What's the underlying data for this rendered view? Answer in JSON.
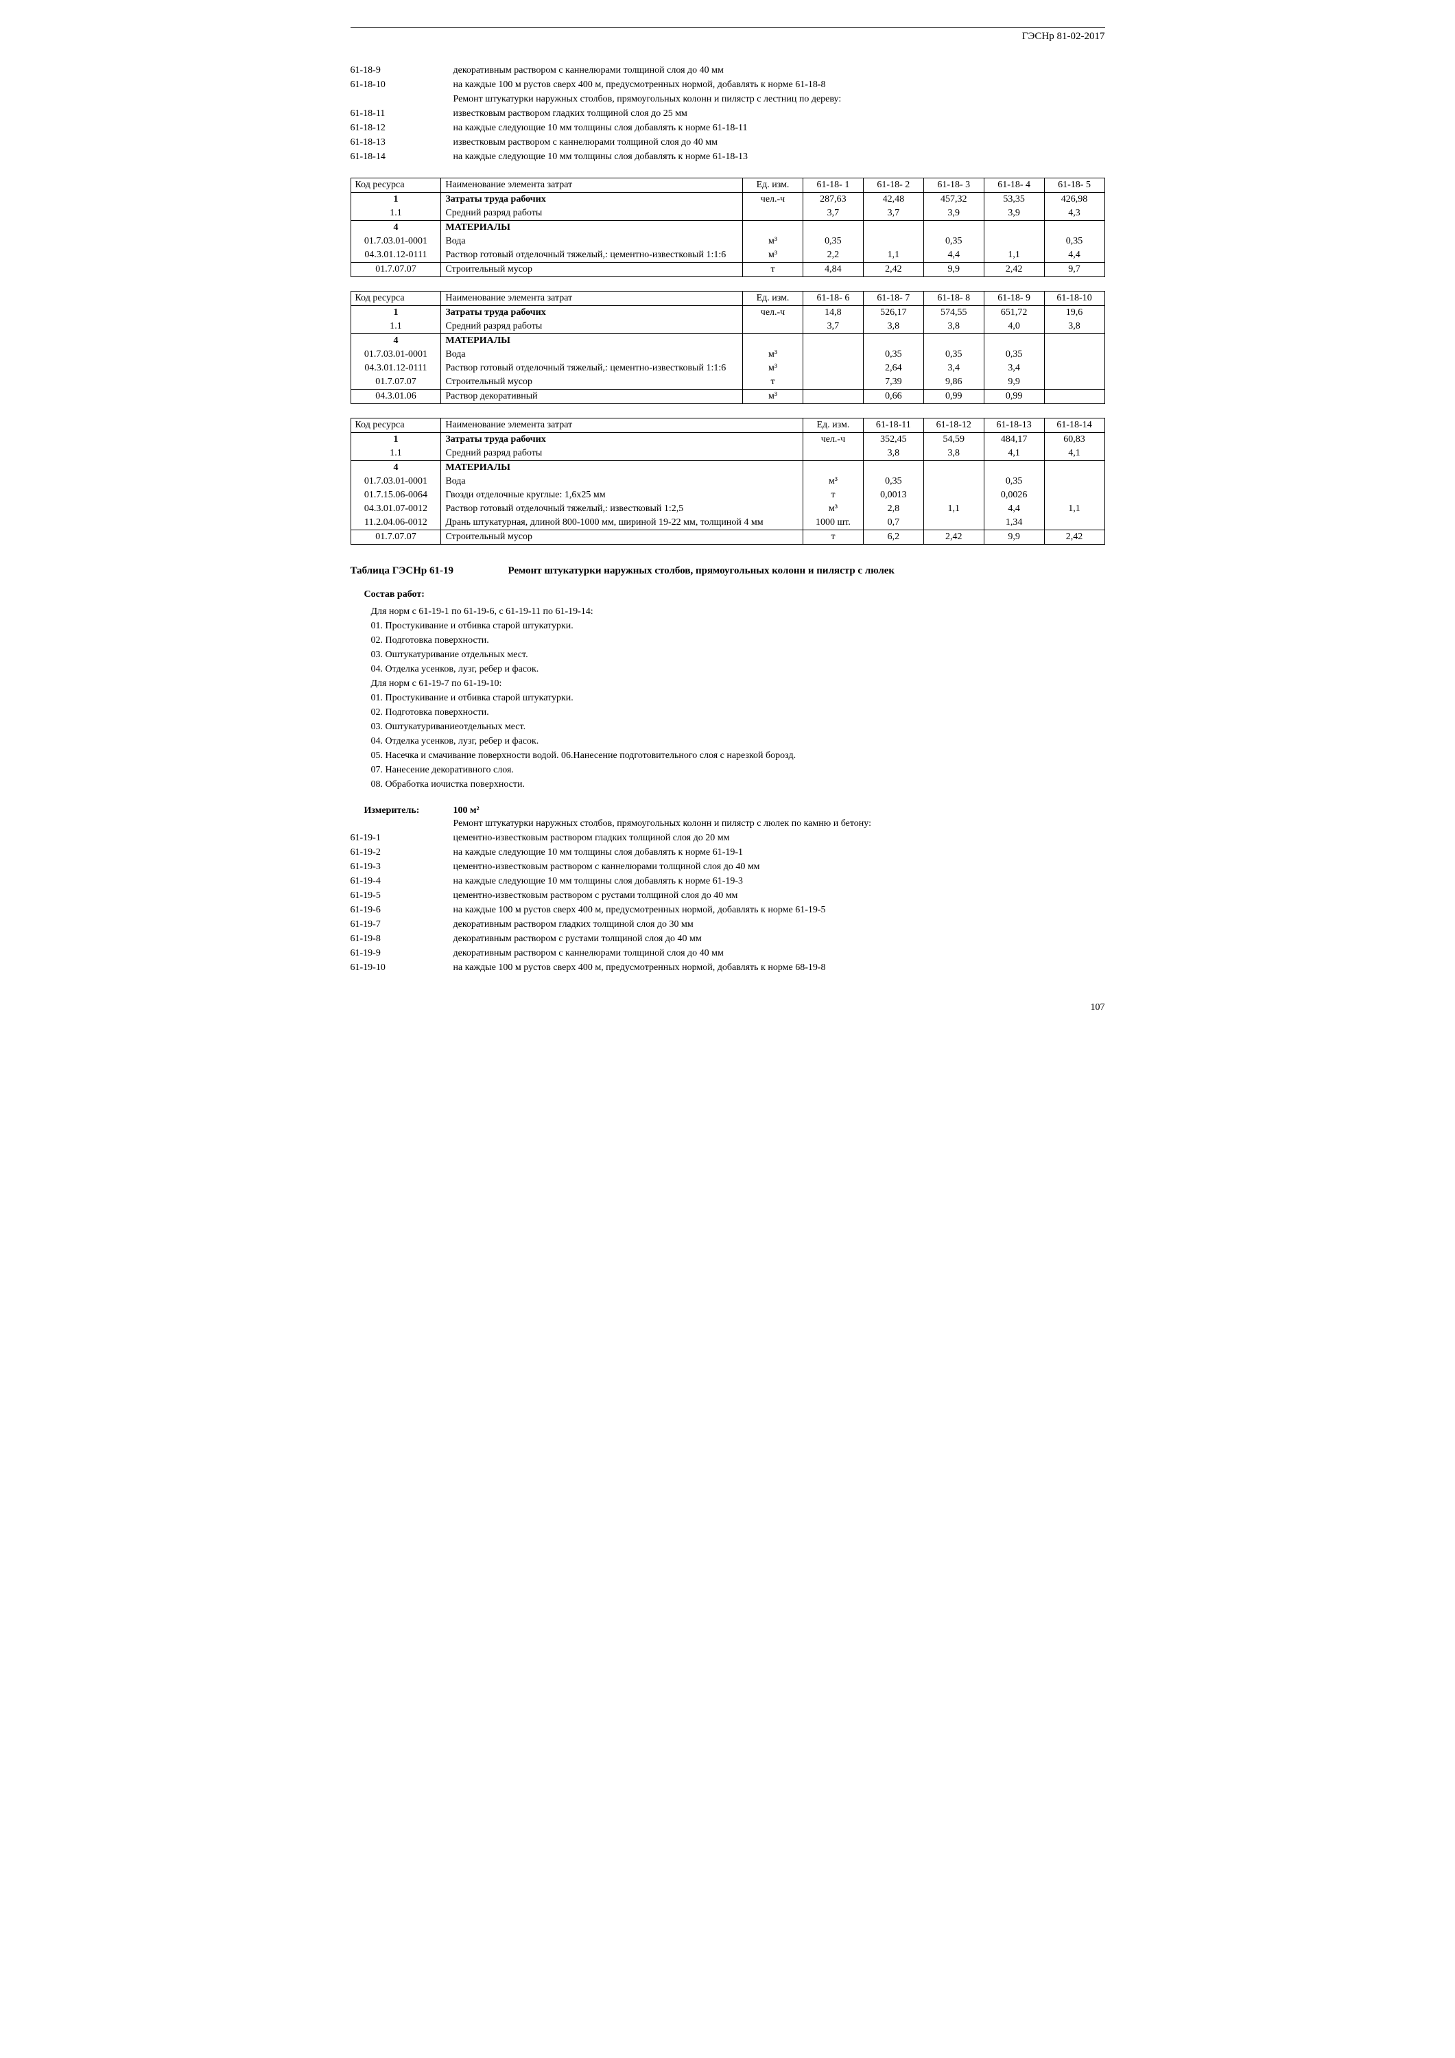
{
  "header": {
    "doc_code": "ГЭСНр 81-02-2017"
  },
  "top_codes": [
    {
      "num": "61-18-9",
      "desc": "декоративным раствором с каннелюрами толщиной слоя до 40 мм"
    },
    {
      "num": "61-18-10",
      "desc": "на каждые 100 м рустов сверх 400 м, предусмотренных нормой, добавлять к норме 61-18-8"
    },
    {
      "num": "",
      "desc": "Ремонт штукатурки наружных столбов, прямоугольных колонн и пилястр с лестниц по дереву:"
    },
    {
      "num": "61-18-11",
      "desc": "известковым раствором гладких толщиной слоя до 25 мм"
    },
    {
      "num": "61-18-12",
      "desc": "на каждые следующие 10 мм толщины слоя добавлять к норме 61-18-11"
    },
    {
      "num": "61-18-13",
      "desc": "известковым раствором с каннелюрами толщиной слоя до 40 мм"
    },
    {
      "num": "61-18-14",
      "desc": "на каждые следующие 10 мм толщины слоя добавлять к норме 61-18-13"
    }
  ],
  "table1": {
    "headers": [
      "Код ресурса",
      "Наименование элемента затрат",
      "Ед. изм.",
      "61-18- 1",
      "61-18- 2",
      "61-18- 3",
      "61-18- 4",
      "61-18- 5"
    ],
    "rows": [
      {
        "code": "1",
        "name": "Затраты труда рабочих",
        "bold": true,
        "unit": "чел.-ч",
        "vals": [
          "287,63",
          "42,48",
          "457,32",
          "53,35",
          "426,98"
        ]
      },
      {
        "code": "1.1",
        "name": "Средний разряд работы",
        "unit": "",
        "vals": [
          "3,7",
          "3,7",
          "3,9",
          "3,9",
          "4,3"
        ]
      },
      {
        "code": "4",
        "name": "МАТЕРИАЛЫ",
        "bold": true,
        "unit": "",
        "vals": [
          "",
          "",
          "",
          "",
          ""
        ]
      },
      {
        "code": "01.7.03.01-0001",
        "name": "Вода",
        "unit": "м³",
        "vals": [
          "0,35",
          "",
          "0,35",
          "",
          "0,35"
        ]
      },
      {
        "code": "04.3.01.12-0111",
        "name": "Раствор готовый отделочный тяжелый,: цементно-известковый 1:1:6",
        "unit": "м³",
        "vals": [
          "2,2",
          "1,1",
          "4,4",
          "1,1",
          "4,4"
        ]
      },
      {
        "code": "01.7.07.07",
        "name": "Строительный мусор",
        "unit": "т",
        "vals": [
          "4,84",
          "2,42",
          "9,9",
          "2,42",
          "9,7"
        ]
      }
    ]
  },
  "table2": {
    "headers": [
      "Код ресурса",
      "Наименование элемента затрат",
      "Ед. изм.",
      "61-18- 6",
      "61-18- 7",
      "61-18- 8",
      "61-18- 9",
      "61-18-10"
    ],
    "rows": [
      {
        "code": "1",
        "name": "Затраты труда рабочих",
        "bold": true,
        "unit": "чел.-ч",
        "vals": [
          "14,8",
          "526,17",
          "574,55",
          "651,72",
          "19,6"
        ]
      },
      {
        "code": "1.1",
        "name": "Средний разряд работы",
        "unit": "",
        "vals": [
          "3,7",
          "3,8",
          "3,8",
          "4,0",
          "3,8"
        ]
      },
      {
        "code": "4",
        "name": "МАТЕРИАЛЫ",
        "bold": true,
        "unit": "",
        "vals": [
          "",
          "",
          "",
          "",
          ""
        ]
      },
      {
        "code": "01.7.03.01-0001",
        "name": "Вода",
        "unit": "м³",
        "vals": [
          "",
          "0,35",
          "0,35",
          "0,35",
          ""
        ]
      },
      {
        "code": "04.3.01.12-0111",
        "name": "Раствор готовый отделочный тяжелый,: цементно-известковый 1:1:6",
        "unit": "м³",
        "vals": [
          "",
          "2,64",
          "3,4",
          "3,4",
          ""
        ]
      },
      {
        "code": "01.7.07.07",
        "name": "Строительный мусор",
        "unit": "т",
        "vals": [
          "",
          "7,39",
          "9,86",
          "9,9",
          ""
        ]
      },
      {
        "code": "04.3.01.06",
        "name": "Раствор декоративный",
        "unit": "м³",
        "vals": [
          "",
          "0,66",
          "0,99",
          "0,99",
          ""
        ]
      }
    ]
  },
  "table3": {
    "headers": [
      "Код ресурса",
      "Наименование элемента затрат",
      "Ед. изм.",
      "61-18-11",
      "61-18-12",
      "61-18-13",
      "61-18-14"
    ],
    "rows": [
      {
        "code": "1",
        "name": "Затраты труда рабочих",
        "bold": true,
        "unit": "чел.-ч",
        "vals": [
          "352,45",
          "54,59",
          "484,17",
          "60,83"
        ]
      },
      {
        "code": "1.1",
        "name": "Средний разряд работы",
        "unit": "",
        "vals": [
          "3,8",
          "3,8",
          "4,1",
          "4,1"
        ]
      },
      {
        "code": "4",
        "name": "МАТЕРИАЛЫ",
        "bold": true,
        "unit": "",
        "vals": [
          "",
          "",
          "",
          ""
        ]
      },
      {
        "code": "01.7.03.01-0001",
        "name": "Вода",
        "unit": "м³",
        "vals": [
          "0,35",
          "",
          "0,35",
          ""
        ]
      },
      {
        "code": "01.7.15.06-0064",
        "name": "Гвозди отделочные круглые: 1,6x25 мм",
        "unit": "т",
        "vals": [
          "0,0013",
          "",
          "0,0026",
          ""
        ]
      },
      {
        "code": "04.3.01.07-0012",
        "name": "Раствор готовый отделочный тяжелый,: известковый 1:2,5",
        "unit": "м³",
        "vals": [
          "2,8",
          "1,1",
          "4,4",
          "1,1"
        ]
      },
      {
        "code": "11.2.04.06-0012",
        "name": "Дрань штукатурная, длиной 800-1000 мм, шириной 19-22 мм, толщиной 4 мм",
        "unit": "1000 шт.",
        "vals": [
          "0,7",
          "",
          "1,34",
          ""
        ]
      },
      {
        "code": "01.7.07.07",
        "name": "Строительный мусор",
        "unit": "т",
        "vals": [
          "6,2",
          "2,42",
          "9,9",
          "2,42"
        ]
      }
    ]
  },
  "section_61_19": {
    "label": "Таблица ГЭСНр 61-19",
    "title": "Ремонт штукатурки наружных столбов, прямоугольных колонн и пилястр с люлек",
    "wc_title": "Состав работ:",
    "wc_lines": [
      "Для норм с 61-19-1 по 61-19-6, с 61-19-11 по 61-19-14:",
      "01. Простукивание и отбивка старой штукатурки.",
      "02. Подготовка поверхности.",
      "03. Оштукатуривание отдельных мест.",
      "04. Отделка усенков, лузг, ребер и фасок.",
      "Для норм с 61-19-7 по 61-19-10:",
      "01. Простукивание и отбивка старой штукатурки.",
      "02. Подготовка поверхности.",
      "03. Оштукатуриваниеотдельных мест.",
      "04. Отделка усенков, лузг, ребер и фасок.",
      "05. Насечка и смачивание поверхности водой. 06.Нанесение подготовительного слоя с нарезкой борозд.",
      "07. Нанесение декоративного слоя.",
      "08. Обработка иочистка поверхности."
    ],
    "measure_label": "Измеритель:",
    "measure_val": "100 м²",
    "intro": "Ремонт штукатурки наружных столбов, прямоугольных колонн и пилястр с люлек по камню и бетону:",
    "codes": [
      {
        "num": "61-19-1",
        "desc": "цементно-известковым раствором гладких толщиной слоя до 20 мм"
      },
      {
        "num": "61-19-2",
        "desc": "на каждые следующие 10 мм толщины слоя добавлять к норме 61-19-1"
      },
      {
        "num": "61-19-3",
        "desc": "цементно-известковым раствором с каннелюрами толщиной слоя до 40 мм"
      },
      {
        "num": "61-19-4",
        "desc": "на каждые следующие 10 мм толщины слоя добавлять к норме 61-19-3"
      },
      {
        "num": "61-19-5",
        "desc": "цементно-известковым раствором с рустами толщиной слоя до 40 мм"
      },
      {
        "num": "61-19-6",
        "desc": "на каждые 100 м рустов сверх 400 м, предусмотренных нормой, добавлять к норме 61-19-5"
      },
      {
        "num": "61-19-7",
        "desc": "декоративным раствором гладких толщиной слоя до 30 мм"
      },
      {
        "num": "61-19-8",
        "desc": "декоративным раствором с рустами толщиной слоя до 40 мм"
      },
      {
        "num": "61-19-9",
        "desc": "декоративным раствором с каннелюрами толщиной слоя до 40 мм"
      },
      {
        "num": "61-19-10",
        "desc": "на каждые 100 м рустов сверх 400 м, предусмотренных нормой, добавлять к норме 68-19-8"
      }
    ]
  },
  "page_number": "107"
}
